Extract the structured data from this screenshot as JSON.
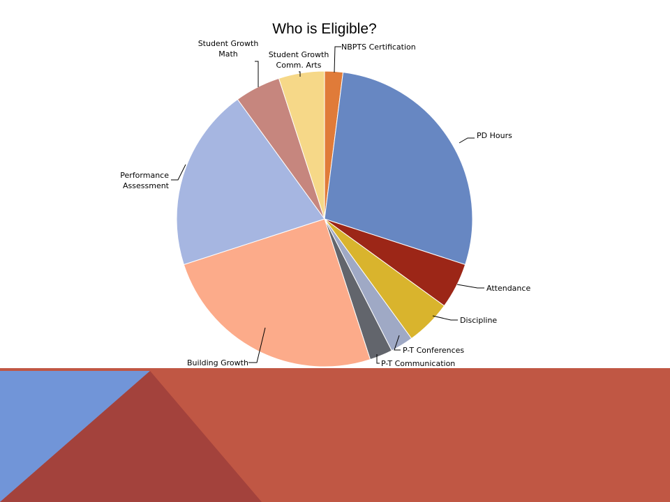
{
  "chart_data": {
    "type": "pie",
    "title": "Who is Eligible?",
    "categories": [
      "NBPTS Certification",
      "PD Hours",
      "Attendance",
      "Discipline",
      "P-T Conferences",
      "P-T Communication",
      "Building Growth",
      "Performance Assessment",
      "Student Growth Math",
      "Student Growth Comm. Arts"
    ],
    "values": [
      2,
      28,
      5,
      5,
      2.5,
      2.5,
      25,
      20,
      5,
      5
    ],
    "unit": "percent",
    "colors": [
      "#e07b39",
      "#6787c2",
      "#9c2617",
      "#d9b42d",
      "#9fa9c5",
      "#62656c",
      "#fcab8a",
      "#a6b6e1",
      "#c6867e",
      "#f6d888"
    ],
    "legend": "none",
    "label_position": "outside-with-leader-lines"
  },
  "background": {
    "band_colors": [
      "#c05744",
      "#7195d8",
      "#a3423c"
    ]
  }
}
